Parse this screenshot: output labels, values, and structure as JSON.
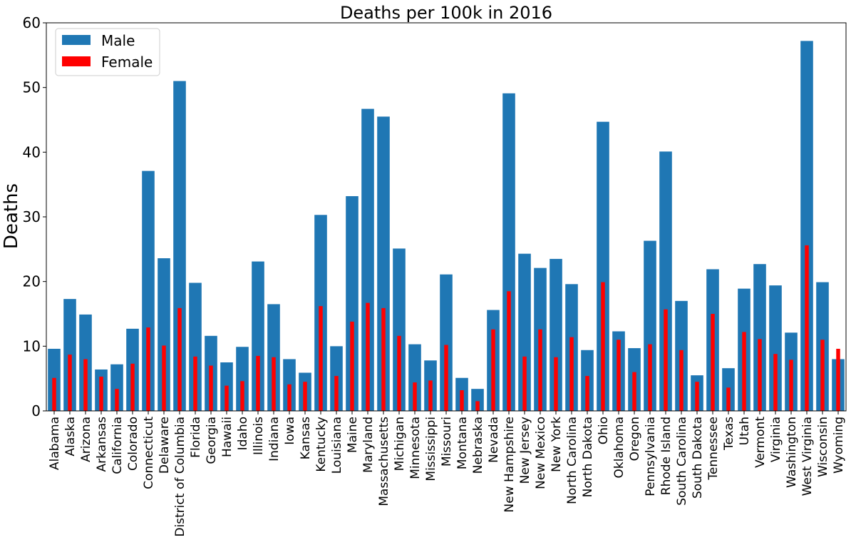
{
  "chart_data": {
    "type": "bar",
    "title": "Deaths per 100k in 2016",
    "xlabel": "",
    "ylabel": "Deaths",
    "ylim": [
      0,
      60
    ],
    "yticks": [
      0,
      10,
      20,
      30,
      40,
      50,
      60
    ],
    "grid": false,
    "legend": "top-left",
    "categories": [
      "Alabama",
      "Alaska",
      "Arizona",
      "Arkansas",
      "California",
      "Colorado",
      "Connecticut",
      "Delaware",
      "District of Columbia",
      "Florida",
      "Georgia",
      "Hawaii",
      "Idaho",
      "Illinois",
      "Indiana",
      "Iowa",
      "Kansas",
      "Kentucky",
      "Louisiana",
      "Maine",
      "Maryland",
      "Massachusetts",
      "Michigan",
      "Minnesota",
      "Mississippi",
      "Missouri",
      "Montana",
      "Nebraska",
      "Nevada",
      "New Hampshire",
      "New Jersey",
      "New Mexico",
      "New York",
      "North Carolina",
      "North Dakota",
      "Ohio",
      "Oklahoma",
      "Oregon",
      "Pennsylvania",
      "Rhode Island",
      "South Carolina",
      "South Dakota",
      "Tennessee",
      "Texas",
      "Utah",
      "Vermont",
      "Virginia",
      "Washington",
      "West Virginia",
      "Wisconsin",
      "Wyoming"
    ],
    "series": [
      {
        "name": "Male",
        "color": "#1f77b4",
        "values": [
          9.6,
          17.3,
          14.9,
          6.4,
          7.2,
          12.7,
          37.1,
          23.6,
          51.0,
          19.8,
          11.6,
          7.5,
          9.9,
          23.1,
          16.5,
          8.0,
          5.9,
          30.3,
          10.0,
          33.2,
          46.7,
          45.5,
          25.1,
          10.3,
          7.8,
          21.1,
          5.1,
          3.4,
          15.6,
          49.1,
          24.3,
          22.1,
          23.5,
          19.6,
          9.4,
          44.7,
          12.3,
          9.7,
          26.3,
          40.1,
          17.0,
          5.5,
          21.9,
          6.6,
          18.9,
          22.7,
          19.4,
          12.1,
          57.2,
          19.9,
          8.0
        ]
      },
      {
        "name": "Female",
        "color": "#ff0000",
        "values": [
          5.1,
          8.7,
          8.0,
          5.3,
          3.4,
          7.3,
          12.9,
          10.1,
          15.9,
          8.4,
          7.0,
          3.9,
          4.6,
          8.5,
          8.3,
          4.1,
          4.5,
          16.2,
          5.4,
          13.8,
          16.7,
          15.9,
          11.6,
          4.4,
          4.7,
          10.2,
          3.2,
          1.5,
          12.6,
          18.5,
          8.4,
          12.6,
          8.3,
          11.4,
          5.4,
          19.9,
          11.0,
          6.0,
          10.3,
          15.7,
          9.4,
          4.5,
          15.0,
          3.6,
          12.2,
          11.1,
          8.8,
          7.9,
          25.6,
          11.0,
          9.6
        ]
      }
    ]
  }
}
